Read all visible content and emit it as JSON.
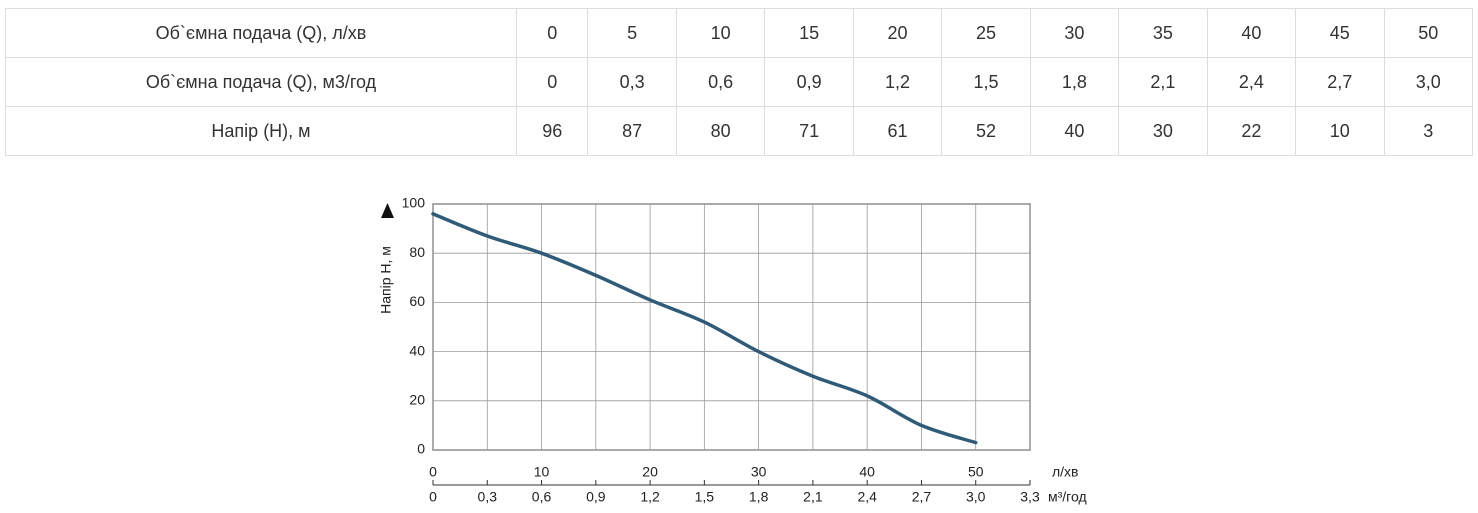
{
  "table": {
    "rows": [
      [
        "Об`ємна подача (Q), л/хв",
        "0",
        "5",
        "10",
        "15",
        "20",
        "25",
        "30",
        "35",
        "40",
        "45",
        "50"
      ],
      [
        "Об`ємна подача (Q), м3/год",
        "0",
        "0,3",
        "0,6",
        "0,9",
        "1,2",
        "1,5",
        "1,8",
        "2,1",
        "2,4",
        "2,7",
        "3,0"
      ],
      [
        "Напір (Н), м",
        "96",
        "87",
        "80",
        "71",
        "61",
        "52",
        "40",
        "30",
        "22",
        "10",
        "3"
      ]
    ]
  },
  "chart_data": {
    "type": "line",
    "y_label": "Напір Н, м",
    "x_label": "л/хв",
    "x2_label": "м³/год",
    "x": [
      0,
      5,
      10,
      15,
      20,
      25,
      30,
      35,
      40,
      45,
      50
    ],
    "series": [
      {
        "color": "#2f5b78",
        "values": [
          96,
          87,
          80,
          71,
          61,
          52,
          40,
          30,
          22,
          10,
          3
        ]
      }
    ],
    "xlim": [
      0,
      55
    ],
    "xticks": [
      0,
      10,
      20,
      30,
      40,
      50
    ],
    "x2lim": [
      0,
      3.3
    ],
    "x2ticks": [
      0,
      {
        "value": 0.3,
        "label": "0,3"
      },
      {
        "value": 0.6,
        "label": "0,6"
      },
      {
        "value": 0.9,
        "label": "0,9"
      },
      {
        "value": 1.2,
        "label": "1,2"
      },
      {
        "value": 1.5,
        "label": "1,5"
      },
      {
        "value": 1.8,
        "label": "1,8"
      },
      {
        "value": 2.1,
        "label": "2,1"
      },
      {
        "value": 2.4,
        "label": "2,4"
      },
      {
        "value": 2.7,
        "label": "2,7"
      },
      {
        "value": 3.0,
        "label": "3,0"
      },
      {
        "value": 3.3,
        "label": "3,3"
      }
    ],
    "ylim": [
      0,
      100
    ],
    "yticks": [
      0,
      20,
      40,
      60,
      80,
      100
    ],
    "grid": true
  }
}
